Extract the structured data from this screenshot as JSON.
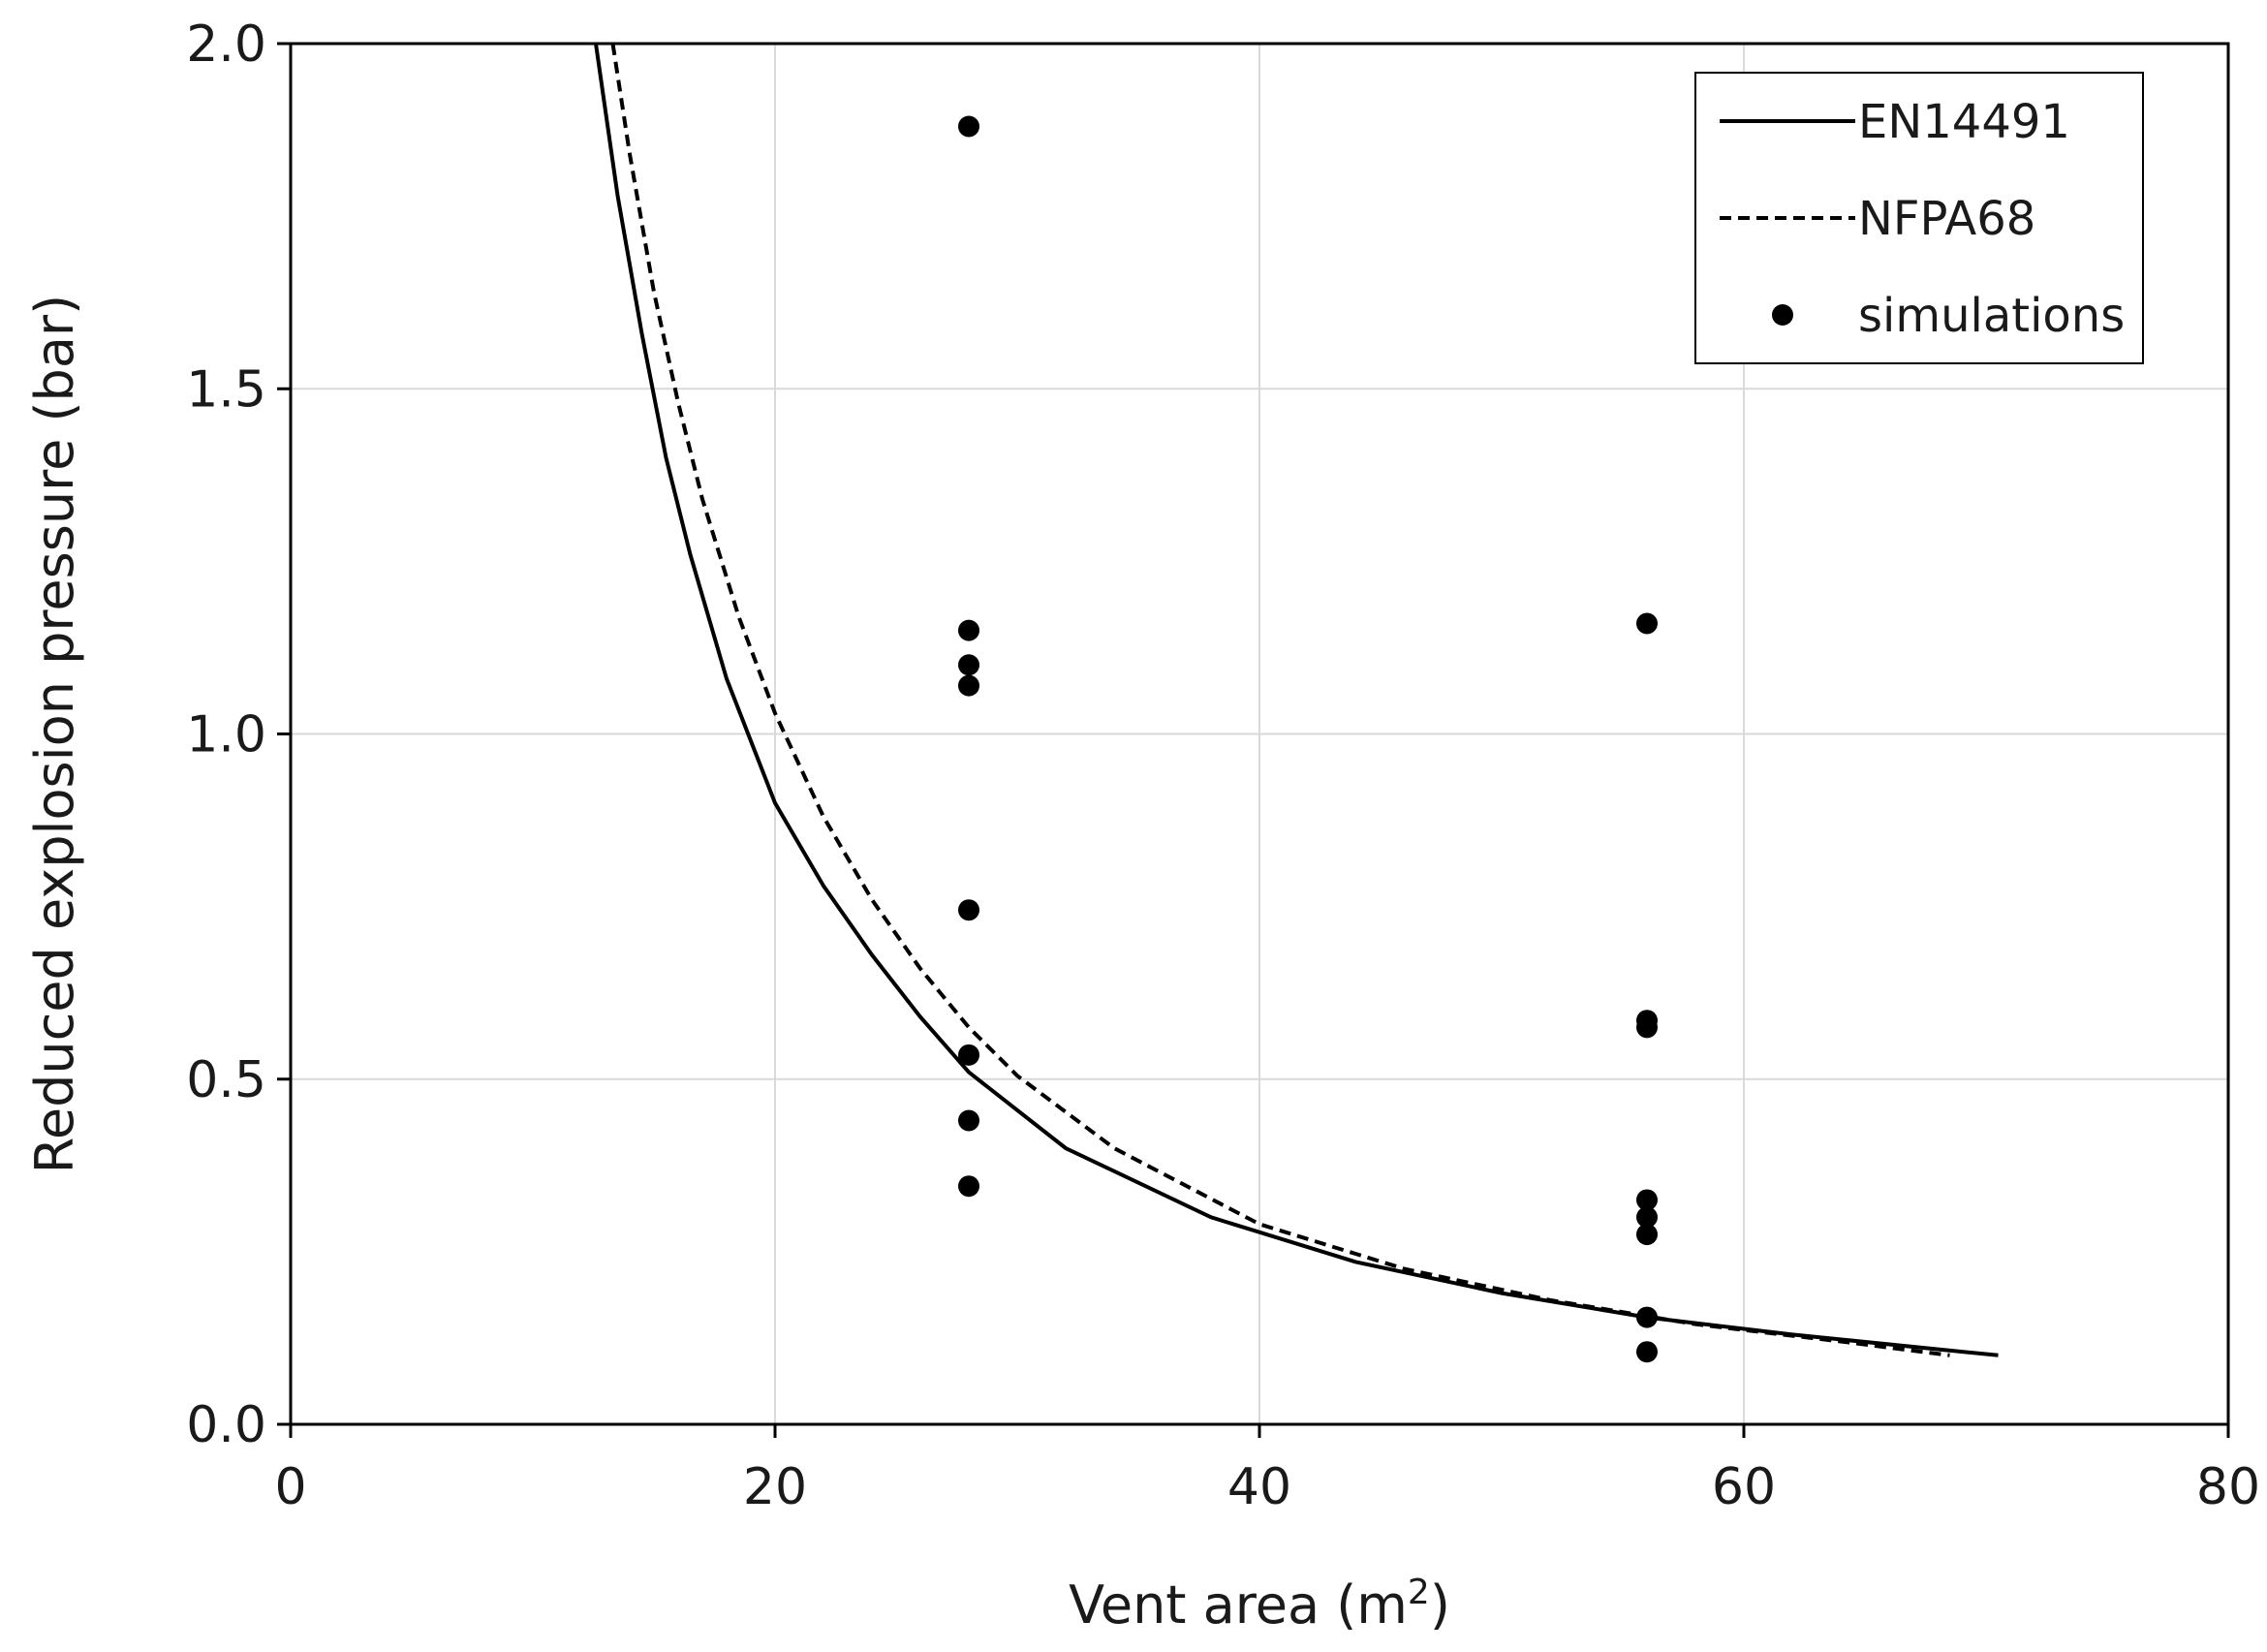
{
  "chart_data": {
    "type": "scatter",
    "title": "",
    "xlabel": "Vent area (m",
    "xlabel_sup": "2",
    "xlabel_suffix": ")",
    "ylabel": "Reduced explosion pressure (bar)",
    "xlim": [
      0,
      80
    ],
    "ylim": [
      0,
      2.0
    ],
    "x_ticks": [
      0,
      20,
      40,
      60,
      80
    ],
    "x_tick_labels": [
      "0",
      "20",
      "40",
      "60",
      "80"
    ],
    "y_ticks": [
      0,
      0.5,
      1.0,
      1.5,
      2.0
    ],
    "y_tick_labels": [
      "0.0",
      "0.5",
      "1.0",
      "1.5",
      "2.0"
    ],
    "grid": true,
    "legend_position": "top-right",
    "series": [
      {
        "name": "EN14491",
        "style": "solid",
        "color": "#000000",
        "x": [
          12.6,
          13.5,
          14.5,
          15.5,
          16.5,
          18,
          20,
          22,
          24,
          26,
          28,
          32,
          38,
          44,
          50,
          56,
          62,
          70.5
        ],
        "y": [
          2.0,
          1.78,
          1.58,
          1.4,
          1.26,
          1.08,
          0.9,
          0.78,
          0.68,
          0.59,
          0.51,
          0.4,
          0.3,
          0.235,
          0.19,
          0.155,
          0.13,
          0.1
        ]
      },
      {
        "name": "NFPA68",
        "style": "dashed",
        "color": "#000000",
        "x": [
          13.3,
          14,
          15,
          16,
          17,
          18.5,
          20,
          22,
          24,
          26,
          28,
          30,
          34,
          40,
          46,
          52,
          58,
          64,
          68.5
        ],
        "y": [
          2.0,
          1.84,
          1.64,
          1.48,
          1.34,
          1.17,
          1.03,
          0.88,
          0.76,
          0.66,
          0.575,
          0.505,
          0.4,
          0.29,
          0.225,
          0.18,
          0.145,
          0.12,
          0.1
        ]
      },
      {
        "name": "simulations",
        "style": "marker",
        "color": "#000000",
        "points": [
          {
            "x": 28,
            "y": 1.88
          },
          {
            "x": 28,
            "y": 1.15
          },
          {
            "x": 28,
            "y": 1.1
          },
          {
            "x": 28,
            "y": 1.07
          },
          {
            "x": 28,
            "y": 0.745
          },
          {
            "x": 28,
            "y": 0.535
          },
          {
            "x": 28,
            "y": 0.44
          },
          {
            "x": 28,
            "y": 0.345
          },
          {
            "x": 56,
            "y": 1.16
          },
          {
            "x": 56,
            "y": 0.585
          },
          {
            "x": 56,
            "y": 0.575
          },
          {
            "x": 56,
            "y": 0.325
          },
          {
            "x": 56,
            "y": 0.3
          },
          {
            "x": 56,
            "y": 0.275
          },
          {
            "x": 56,
            "y": 0.155
          },
          {
            "x": 56,
            "y": 0.105
          }
        ]
      }
    ]
  }
}
